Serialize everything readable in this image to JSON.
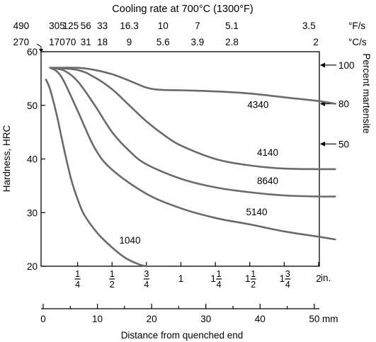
{
  "chart_data": {
    "type": "line",
    "title": "Cooling rate at 700°C (1300°F)",
    "xlabel": "Distance from quenched end",
    "ylabel": "Hardness, HRC",
    "ylabel_right": "Percent martensite",
    "ylim": [
      20,
      60
    ],
    "xlim_in": [
      0,
      2.125
    ],
    "y_ticks": [
      20,
      30,
      40,
      50,
      60
    ],
    "x_ticks_in": [
      {
        "v": 0.25,
        "w": "",
        "n": "1",
        "d": "4"
      },
      {
        "v": 0.5,
        "w": "",
        "n": "1",
        "d": "2"
      },
      {
        "v": 0.75,
        "w": "",
        "n": "3",
        "d": "4"
      },
      {
        "v": 1.0,
        "w": "1",
        "n": "",
        "d": ""
      },
      {
        "v": 1.25,
        "w": "1",
        "n": "1",
        "d": "4"
      },
      {
        "v": 1.5,
        "w": "1",
        "n": "1",
        "d": "2"
      },
      {
        "v": 1.75,
        "w": "1",
        "n": "3",
        "d": "4"
      },
      {
        "v": 2.0,
        "w": "2",
        "n": "",
        "d": ""
      }
    ],
    "x_unit_in": "in.",
    "mm_axis": {
      "ticks": [
        0,
        10,
        20,
        30,
        40,
        50
      ],
      "unit": "mm"
    },
    "cooling_rate_F": {
      "unit": "°F/s",
      "labels": [
        {
          "text": "490",
          "at_in": -0.16
        },
        {
          "text": "305",
          "at_in": 0.1
        },
        {
          "text": "125",
          "at_in": 0.2
        },
        {
          "text": "56",
          "at_in": 0.31
        },
        {
          "text": "33",
          "at_in": 0.43
        },
        {
          "text": "16.3",
          "at_in": 0.625
        },
        {
          "text": "10",
          "at_in": 0.87
        },
        {
          "text": "7",
          "at_in": 1.12
        },
        {
          "text": "5.1",
          "at_in": 1.37
        },
        {
          "text": "3.5",
          "at_in": 1.93
        }
      ]
    },
    "cooling_rate_C": {
      "unit": "°C/s",
      "labels": [
        {
          "text": "270",
          "at_in": -0.16
        },
        {
          "text": "170",
          "at_in": 0.1
        },
        {
          "text": "70",
          "at_in": 0.2
        },
        {
          "text": "31",
          "at_in": 0.31
        },
        {
          "text": "18",
          "at_in": 0.43
        },
        {
          "text": "9",
          "at_in": 0.625
        },
        {
          "text": "5.6",
          "at_in": 0.87
        },
        {
          "text": "3.9",
          "at_in": 1.12
        },
        {
          "text": "2.8",
          "at_in": 1.37
        },
        {
          "text": "2",
          "at_in": 1.98
        }
      ]
    },
    "martensite_markers": [
      {
        "label": "100",
        "hrc": 57.5
      },
      {
        "label": "80",
        "hrc": 50.3
      },
      {
        "label": "50",
        "hrc": 42.8
      }
    ],
    "series": [
      {
        "name": "1040",
        "label_at": [
          0.63,
          24.2
        ],
        "points": [
          [
            0.02,
            54.8
          ],
          [
            0.05,
            53
          ],
          [
            0.1,
            48
          ],
          [
            0.15,
            42
          ],
          [
            0.2,
            36.5
          ],
          [
            0.25,
            32.5
          ],
          [
            0.3,
            29.5
          ],
          [
            0.4,
            26
          ],
          [
            0.5,
            23.5
          ],
          [
            0.6,
            21.5
          ],
          [
            0.7,
            20.3
          ],
          [
            0.75,
            20
          ]
        ]
      },
      {
        "name": "5140",
        "label_at": [
          1.55,
          29.5
        ],
        "points": [
          [
            0.05,
            57
          ],
          [
            0.1,
            56.3
          ],
          [
            0.15,
            54.5
          ],
          [
            0.25,
            49
          ],
          [
            0.375,
            42
          ],
          [
            0.5,
            38
          ],
          [
            0.75,
            33.5
          ],
          [
            1.0,
            30.8
          ],
          [
            1.25,
            29
          ],
          [
            1.5,
            27.8
          ],
          [
            1.75,
            26.5
          ],
          [
            2.0,
            25.5
          ],
          [
            2.12,
            25
          ]
        ]
      },
      {
        "name": "8640",
        "label_at": [
          1.63,
          35.3
        ],
        "points": [
          [
            0.05,
            57
          ],
          [
            0.15,
            56.5
          ],
          [
            0.25,
            54.5
          ],
          [
            0.375,
            50
          ],
          [
            0.5,
            45
          ],
          [
            0.625,
            41.5
          ],
          [
            0.75,
            39
          ],
          [
            1.0,
            36.3
          ],
          [
            1.25,
            34.7
          ],
          [
            1.5,
            33.8
          ],
          [
            1.75,
            33.2
          ],
          [
            2.0,
            33
          ],
          [
            2.12,
            33
          ]
        ]
      },
      {
        "name": "4140",
        "label_at": [
          1.63,
          40.6
        ],
        "points": [
          [
            0.05,
            57
          ],
          [
            0.25,
            56.6
          ],
          [
            0.375,
            55.2
          ],
          [
            0.5,
            53
          ],
          [
            0.625,
            50
          ],
          [
            0.75,
            47
          ],
          [
            0.875,
            44.5
          ],
          [
            1.0,
            42.5
          ],
          [
            1.25,
            40
          ],
          [
            1.5,
            38.8
          ],
          [
            1.75,
            38.2
          ],
          [
            2.0,
            38.1
          ],
          [
            2.12,
            38.1
          ]
        ]
      },
      {
        "name": "4340",
        "label_at": [
          1.56,
          49.5
        ],
        "points": [
          [
            0.05,
            57
          ],
          [
            0.25,
            57
          ],
          [
            0.375,
            56.6
          ],
          [
            0.5,
            55.8
          ],
          [
            0.625,
            54.6
          ],
          [
            0.75,
            53.3
          ],
          [
            0.85,
            52.9
          ],
          [
            1.0,
            52.8
          ],
          [
            1.25,
            52.6
          ],
          [
            1.5,
            52.2
          ],
          [
            1.75,
            51.5
          ],
          [
            2.0,
            50.8
          ],
          [
            2.12,
            50.3
          ]
        ]
      }
    ]
  }
}
